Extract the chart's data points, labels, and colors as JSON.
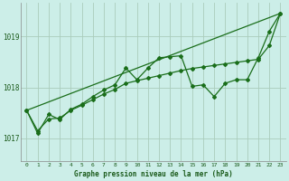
{
  "title": "Graphe pression niveau de la mer (hPa)",
  "background_color": "#cceee8",
  "grid_color": "#aaccbb",
  "line_color": "#1a6e1a",
  "xlim": [
    -0.5,
    23.5
  ],
  "ylim": [
    1016.55,
    1019.65
  ],
  "yticks": [
    1017,
    1018,
    1019
  ],
  "xticks": [
    0,
    1,
    2,
    3,
    4,
    5,
    6,
    7,
    8,
    9,
    10,
    11,
    12,
    13,
    14,
    15,
    16,
    17,
    18,
    19,
    20,
    21,
    22,
    23
  ],
  "series1_x": [
    0,
    1,
    2,
    3,
    4,
    5,
    6,
    7,
    8,
    9,
    10,
    11,
    12,
    13,
    14,
    15,
    16,
    17,
    18,
    19,
    20,
    21,
    22,
    23
  ],
  "series1_y": [
    1017.55,
    1017.1,
    1017.47,
    1017.37,
    1017.57,
    1017.67,
    1017.82,
    1017.95,
    1018.05,
    1018.38,
    1018.15,
    1018.38,
    1018.58,
    1018.6,
    1018.62,
    1018.02,
    1018.05,
    1017.82,
    1018.08,
    1018.15,
    1018.15,
    1018.58,
    1019.1,
    1019.45
  ],
  "series2_x": [
    0,
    23
  ],
  "series2_y": [
    1017.55,
    1019.45
  ],
  "series3_x": [
    0,
    1,
    2,
    3,
    4,
    5,
    6,
    7,
    8,
    9,
    10,
    11,
    12,
    13,
    14,
    15,
    16,
    17,
    18,
    19,
    20,
    21,
    22,
    23
  ],
  "series3_y": [
    1017.55,
    1017.15,
    1017.38,
    1017.4,
    1017.55,
    1017.65,
    1017.76,
    1017.87,
    1017.96,
    1018.08,
    1018.13,
    1018.18,
    1018.23,
    1018.28,
    1018.33,
    1018.37,
    1018.4,
    1018.43,
    1018.46,
    1018.49,
    1018.52,
    1018.55,
    1018.82,
    1019.45
  ]
}
